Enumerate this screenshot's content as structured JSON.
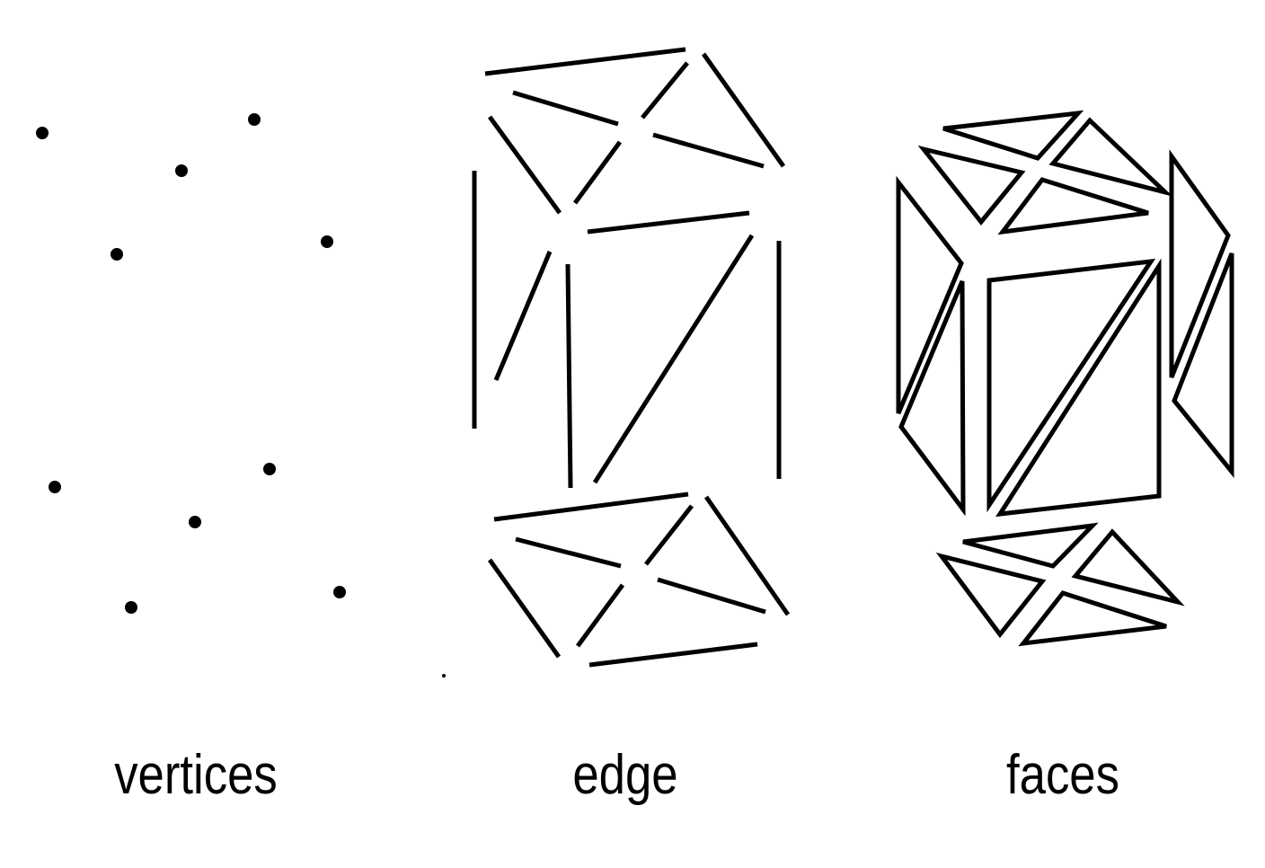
{
  "labels": {
    "vertices": "vertices",
    "edge": "edge",
    "faces": "faces"
  },
  "colors": {
    "ink": "#000000",
    "background": "#ffffff"
  }
}
